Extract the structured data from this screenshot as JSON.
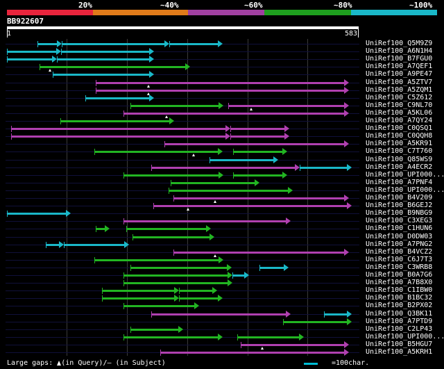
{
  "scale": {
    "labels": [
      "20%",
      "~40%",
      "~60%",
      "~80%",
      "~100%"
    ],
    "colors": [
      "#e8243c",
      "#e07b1a",
      "#a040a0",
      "#1e9e1e",
      "#1ab8c8"
    ]
  },
  "query": {
    "name": "BB922607",
    "start": "1",
    "end": "583",
    "length": 583
  },
  "color_map": {
    "c": "#1ab8c8",
    "g": "#22b522",
    "m": "#b040b0"
  },
  "hits": [
    {
      "name": "UniRef100_Q5M9Z9",
      "segs": [
        [
          51,
          91,
          "c"
        ],
        [
          91,
          270,
          "c"
        ],
        [
          270,
          358,
          "c"
        ]
      ],
      "gaps": []
    },
    {
      "name": "UniRef100_A6N1H4",
      "segs": [
        [
          0,
          90,
          "c"
        ],
        [
          90,
          244,
          "c"
        ]
      ],
      "gaps": []
    },
    {
      "name": "UniRef100_B7FGU0",
      "segs": [
        [
          0,
          83,
          "c"
        ],
        [
          83,
          244,
          "c"
        ]
      ],
      "gaps": []
    },
    {
      "name": "UniRef100_A7QEF1",
      "segs": [
        [
          54,
          304,
          "g"
        ]
      ],
      "gaps": [
        71
      ]
    },
    {
      "name": "UniRef100_A9PE47",
      "segs": [
        [
          76,
          244,
          "c"
        ]
      ],
      "gaps": []
    },
    {
      "name": "UniRef100_A5ZTV7",
      "segs": [
        [
          148,
          568,
          "m"
        ]
      ],
      "gaps": [
        235
      ]
    },
    {
      "name": "UniRef100_A5ZQM1",
      "segs": [
        [
          148,
          568,
          "m"
        ]
      ],
      "gaps": [
        235
      ]
    },
    {
      "name": "UniRef100_C5Z612",
      "segs": [
        [
          130,
          244,
          "c"
        ]
      ],
      "gaps": []
    },
    {
      "name": "UniRef100_C9NL70",
      "segs": [
        [
          205,
          359,
          "g"
        ],
        [
          368,
          568,
          "m"
        ]
      ],
      "gaps": [
        406
      ]
    },
    {
      "name": "UniRef100_A5KL06",
      "segs": [
        [
          193,
          568,
          "m"
        ]
      ],
      "gaps": [
        265
      ]
    },
    {
      "name": "UniRef100_A7QY24",
      "segs": [
        [
          89,
          278,
          "g"
        ]
      ],
      "gaps": []
    },
    {
      "name": "UniRef100_C0QSQ1",
      "segs": [
        [
          7,
          371,
          "m"
        ],
        [
          371,
          469,
          "m"
        ]
      ],
      "gaps": []
    },
    {
      "name": "UniRef100_C0QQH8",
      "segs": [
        [
          7,
          371,
          "m"
        ],
        [
          371,
          469,
          "m"
        ]
      ],
      "gaps": []
    },
    {
      "name": "UniRef100_A5KR91",
      "segs": [
        [
          261,
          568,
          "m"
        ]
      ],
      "gaps": []
    },
    {
      "name": "UniRef100_C7T760",
      "segs": [
        [
          145,
          358,
          "g"
        ],
        [
          376,
          466,
          "g"
        ]
      ],
      "gaps": [
        310
      ]
    },
    {
      "name": "UniRef100_Q85WS9",
      "segs": [
        [
          336,
          451,
          "c"
        ]
      ],
      "gaps": []
    },
    {
      "name": "UniRef100_A4ECR2",
      "segs": [
        [
          240,
          486,
          "m"
        ],
        [
          486,
          573,
          "c"
        ]
      ],
      "gaps": []
    },
    {
      "name": "UniRef100_UPI000...",
      "segs": [
        [
          193,
          359,
          "g"
        ],
        [
          376,
          466,
          "g"
        ]
      ],
      "gaps": []
    },
    {
      "name": "UniRef100_A7PNF4",
      "segs": [
        [
          272,
          419,
          "g"
        ]
      ],
      "gaps": []
    },
    {
      "name": "UniRef100_UPI000...",
      "segs": [
        [
          268,
          475,
          "g"
        ]
      ],
      "gaps": []
    },
    {
      "name": "UniRef100_B4V209",
      "segs": [
        [
          277,
          568,
          "m"
        ]
      ],
      "gaps": [
        346
      ]
    },
    {
      "name": "UniRef100_B6GEJ2",
      "segs": [
        [
          243,
          573,
          "m"
        ]
      ],
      "gaps": [
        301
      ]
    },
    {
      "name": "UniRef100_B9NBG9",
      "segs": [
        [
          0,
          106,
          "c"
        ]
      ],
      "gaps": []
    },
    {
      "name": "UniRef100_C3XEG3",
      "segs": [
        [
          193,
          471,
          "m"
        ]
      ],
      "gaps": []
    },
    {
      "name": "UniRef100_C1HUN6",
      "segs": [
        [
          147,
          171,
          "g"
        ],
        [
          198,
          339,
          "g"
        ]
      ],
      "gaps": []
    },
    {
      "name": "UniRef100_D0DW03",
      "segs": [
        [
          208,
          344,
          "g"
        ]
      ],
      "gaps": []
    },
    {
      "name": "UniRef100_A7PNG2",
      "segs": [
        [
          64,
          94,
          "c"
        ],
        [
          94,
          203,
          "c"
        ]
      ],
      "gaps": []
    },
    {
      "name": "UniRef100_B4VCZ2",
      "segs": [
        [
          277,
          568,
          "m"
        ]
      ],
      "gaps": [
        346
      ]
    },
    {
      "name": "UniRef100_C6J7T3",
      "segs": [
        [
          145,
          359,
          "g"
        ]
      ],
      "gaps": []
    },
    {
      "name": "UniRef100_C3WRB8",
      "segs": [
        [
          205,
          373,
          "g"
        ],
        [
          419,
          468,
          "c"
        ]
      ],
      "gaps": []
    },
    {
      "name": "UniRef100_B0A7G6",
      "segs": [
        [
          193,
          374,
          "g"
        ],
        [
          374,
          402,
          "c"
        ]
      ],
      "gaps": []
    },
    {
      "name": "UniRef100_A7B8X0",
      "segs": [
        [
          193,
          374,
          "g"
        ]
      ],
      "gaps": []
    },
    {
      "name": "UniRef100_C1IBW0",
      "segs": [
        [
          158,
          286,
          "g"
        ],
        [
          286,
          349,
          "g"
        ]
      ],
      "gaps": []
    },
    {
      "name": "UniRef100_B1BC32",
      "segs": [
        [
          158,
          286,
          "g"
        ],
        [
          286,
          358,
          "g"
        ]
      ],
      "gaps": []
    },
    {
      "name": "UniRef100_B2PX02",
      "segs": [
        [
          193,
          319,
          "g"
        ]
      ],
      "gaps": []
    },
    {
      "name": "UniRef100_Q3BK11",
      "segs": [
        [
          240,
          471,
          "m"
        ],
        [
          526,
          573,
          "c"
        ]
      ],
      "gaps": []
    },
    {
      "name": "UniRef100_A7PTD9",
      "segs": [
        [
          459,
          573,
          "g"
        ]
      ],
      "gaps": []
    },
    {
      "name": "UniRef100_C2LP43",
      "segs": [
        [
          205,
          293,
          "g"
        ]
      ],
      "gaps": []
    },
    {
      "name": "UniRef100_UPI000...",
      "segs": [
        [
          193,
          358,
          "g"
        ],
        [
          383,
          493,
          "g"
        ]
      ],
      "gaps": []
    },
    {
      "name": "UniRef100_B5HGU7",
      "segs": [
        [
          388,
          568,
          "m"
        ]
      ],
      "gaps": [
        424
      ]
    },
    {
      "name": "UniRef100_A5KRH1",
      "segs": [
        [
          255,
          568,
          "m"
        ]
      ],
      "gaps": []
    }
  ],
  "legend": {
    "gaps_prefix": "Large gaps: ",
    "gaps_suffix": "(in Query)/– (in Subject)",
    "bar_label": "=100char."
  }
}
